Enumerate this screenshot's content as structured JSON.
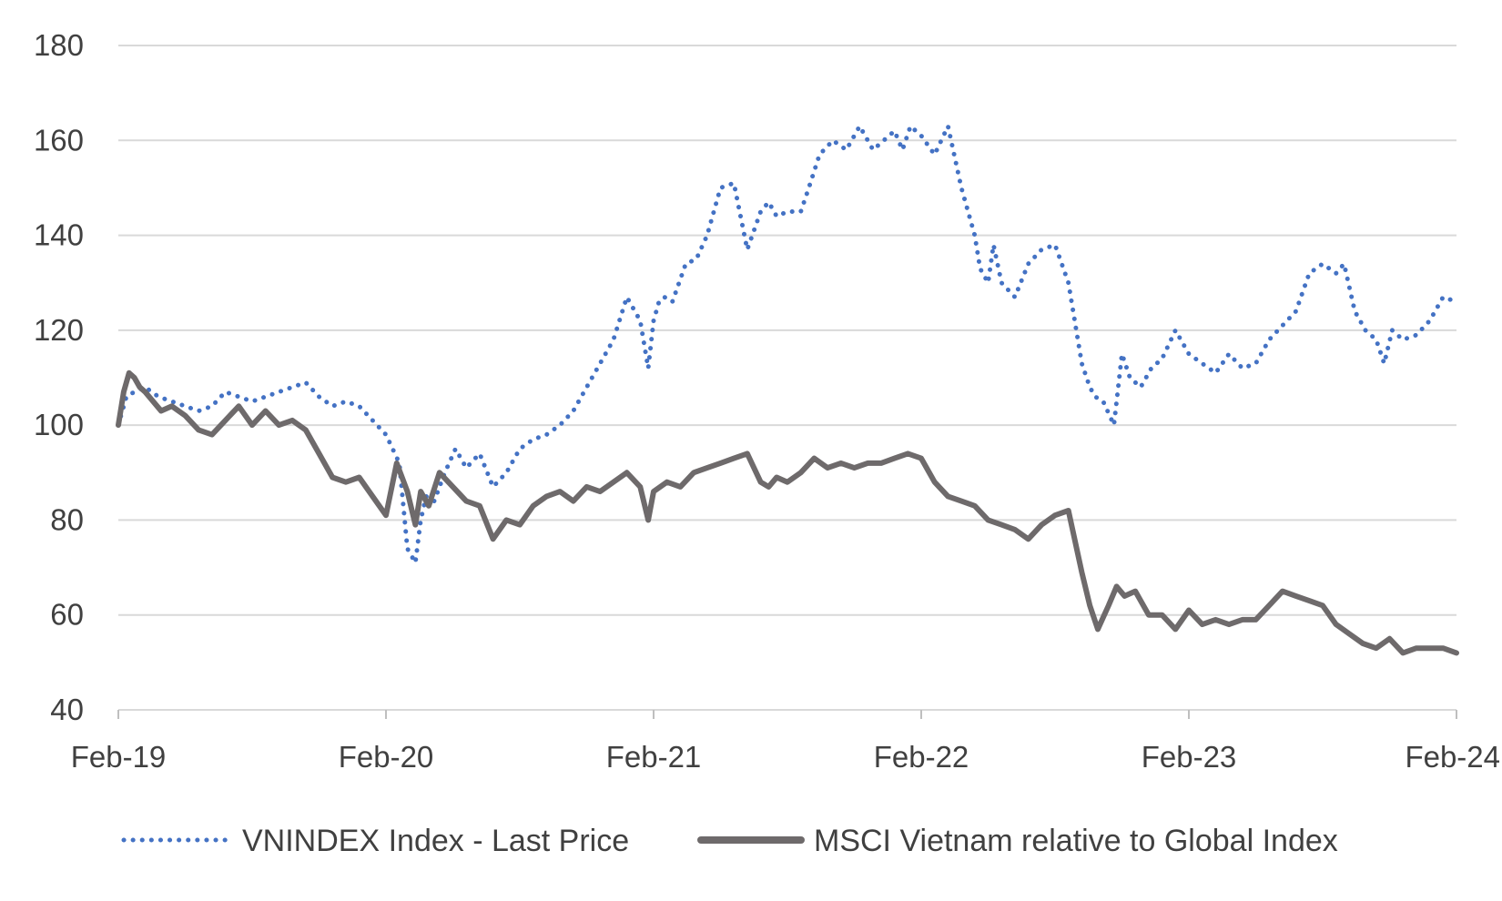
{
  "chart_data": {
    "type": "line",
    "title": "",
    "xlabel": "",
    "ylabel": "",
    "ylim": [
      40,
      180
    ],
    "y_ticks": [
      40,
      60,
      80,
      100,
      120,
      140,
      160,
      180
    ],
    "x_ticks": [
      "Feb-19",
      "Feb-20",
      "Feb-21",
      "Feb-22",
      "Feb-23",
      "Feb-24"
    ],
    "xlim": [
      2019.0,
      2024.0
    ],
    "grid": true,
    "legend_position": "bottom",
    "series": [
      {
        "name": "VNINDEX Index - Last Price",
        "style": "dotted",
        "color": "#4472C4",
        "x": [
          2019.0,
          2019.03,
          2019.06,
          2019.1,
          2019.15,
          2019.2,
          2019.25,
          2019.3,
          2019.35,
          2019.4,
          2019.45,
          2019.5,
          2019.55,
          2019.6,
          2019.65,
          2019.7,
          2019.75,
          2019.8,
          2019.85,
          2019.9,
          2019.95,
          2020.0,
          2020.05,
          2020.08,
          2020.11,
          2020.13,
          2020.15,
          2020.18,
          2020.22,
          2020.26,
          2020.3,
          2020.35,
          2020.4,
          2020.45,
          2020.5,
          2020.55,
          2020.6,
          2020.65,
          2020.7,
          2020.75,
          2020.8,
          2020.85,
          2020.9,
          2020.95,
          2020.98,
          2021.0,
          2021.02,
          2021.04,
          2021.07,
          2021.12,
          2021.16,
          2021.2,
          2021.25,
          2021.3,
          2021.35,
          2021.4,
          2021.43,
          2021.46,
          2021.5,
          2021.55,
          2021.58,
          2021.62,
          2021.67,
          2021.72,
          2021.77,
          2021.82,
          2021.86,
          2021.9,
          2021.93,
          2021.96,
          2022.0,
          2022.05,
          2022.1,
          2022.15,
          2022.2,
          2022.22,
          2022.25,
          2022.27,
          2022.3,
          2022.35,
          2022.4,
          2022.45,
          2022.5,
          2022.55,
          2022.6,
          2022.63,
          2022.65,
          2022.68,
          2022.72,
          2022.75,
          2022.78,
          2022.82,
          2022.86,
          2022.9,
          2022.95,
          2023.0,
          2023.05,
          2023.1,
          2023.15,
          2023.2,
          2023.25,
          2023.3,
          2023.35,
          2023.4,
          2023.45,
          2023.5,
          2023.55,
          2023.58,
          2023.62,
          2023.66,
          2023.7,
          2023.73,
          2023.76,
          2023.8,
          2023.85,
          2023.9,
          2023.95,
          2024.0
        ],
        "values": [
          100,
          106,
          107,
          108,
          106,
          105,
          104,
          103,
          104,
          107,
          106,
          105,
          106,
          107,
          108,
          109,
          106,
          104,
          105,
          104,
          101,
          98,
          92,
          74,
          71,
          80,
          85,
          84,
          90,
          95,
          91,
          94,
          87,
          90,
          95,
          97,
          98,
          100,
          103,
          108,
          113,
          118,
          127,
          122,
          112,
          122,
          126,
          127,
          126,
          134,
          135,
          140,
          150,
          151,
          137,
          145,
          147,
          144,
          145,
          145,
          150,
          157,
          160,
          158,
          163,
          158,
          160,
          162,
          158,
          163,
          161,
          157,
          163,
          150,
          140,
          133,
          130,
          138,
          130,
          127,
          134,
          137,
          138,
          130,
          113,
          108,
          106,
          105,
          100,
          115,
          110,
          108,
          112,
          114,
          120,
          115,
          113,
          111,
          115,
          112,
          113,
          118,
          121,
          124,
          132,
          134,
          132,
          134,
          124,
          120,
          118,
          113,
          120,
          118,
          119,
          122,
          127,
          126
        ],
        "end_value_visible": 126
      },
      {
        "name": "MSCI Vietnam relative to Global Index",
        "style": "solid",
        "color": "#6E6A6B",
        "x": [
          2019.0,
          2019.02,
          2019.04,
          2019.06,
          2019.08,
          2019.1,
          2019.13,
          2019.16,
          2019.2,
          2019.25,
          2019.3,
          2019.35,
          2019.4,
          2019.45,
          2019.5,
          2019.55,
          2019.6,
          2019.65,
          2019.7,
          2019.75,
          2019.8,
          2019.85,
          2019.9,
          2019.95,
          2020.0,
          2020.04,
          2020.08,
          2020.11,
          2020.13,
          2020.16,
          2020.2,
          2020.25,
          2020.3,
          2020.35,
          2020.4,
          2020.45,
          2020.5,
          2020.55,
          2020.6,
          2020.65,
          2020.7,
          2020.75,
          2020.8,
          2020.85,
          2020.9,
          2020.95,
          2020.98,
          2021.0,
          2021.05,
          2021.1,
          2021.15,
          2021.2,
          2021.25,
          2021.3,
          2021.35,
          2021.4,
          2021.43,
          2021.46,
          2021.5,
          2021.55,
          2021.6,
          2021.65,
          2021.7,
          2021.75,
          2021.8,
          2021.85,
          2021.9,
          2021.95,
          2022.0,
          2022.05,
          2022.1,
          2022.15,
          2022.2,
          2022.25,
          2022.3,
          2022.35,
          2022.4,
          2022.45,
          2022.5,
          2022.55,
          2022.6,
          2022.63,
          2022.66,
          2022.7,
          2022.73,
          2022.76,
          2022.8,
          2022.85,
          2022.9,
          2022.95,
          2023.0,
          2023.05,
          2023.1,
          2023.15,
          2023.2,
          2023.25,
          2023.3,
          2023.35,
          2023.4,
          2023.45,
          2023.5,
          2023.55,
          2023.6,
          2023.65,
          2023.7,
          2023.75,
          2023.8,
          2023.85,
          2023.9,
          2023.95,
          2024.0
        ],
        "values": [
          100,
          107,
          111,
          110,
          108,
          107,
          105,
          103,
          104,
          102,
          99,
          98,
          101,
          104,
          100,
          103,
          100,
          101,
          99,
          94,
          89,
          88,
          89,
          85,
          81,
          92,
          86,
          79,
          86,
          83,
          90,
          87,
          84,
          83,
          76,
          80,
          79,
          83,
          85,
          86,
          84,
          87,
          86,
          88,
          90,
          87,
          80,
          86,
          88,
          87,
          90,
          91,
          92,
          93,
          94,
          88,
          87,
          89,
          88,
          90,
          93,
          91,
          92,
          91,
          92,
          92,
          93,
          94,
          93,
          88,
          85,
          84,
          83,
          80,
          79,
          78,
          76,
          79,
          81,
          82,
          69,
          62,
          57,
          62,
          66,
          64,
          65,
          60,
          60,
          57,
          61,
          58,
          59,
          58,
          59,
          59,
          62,
          65,
          64,
          63,
          62,
          58,
          56,
          54,
          53,
          55,
          52,
          53,
          53,
          53,
          52
        ],
        "end_value_visible": 52
      }
    ]
  }
}
